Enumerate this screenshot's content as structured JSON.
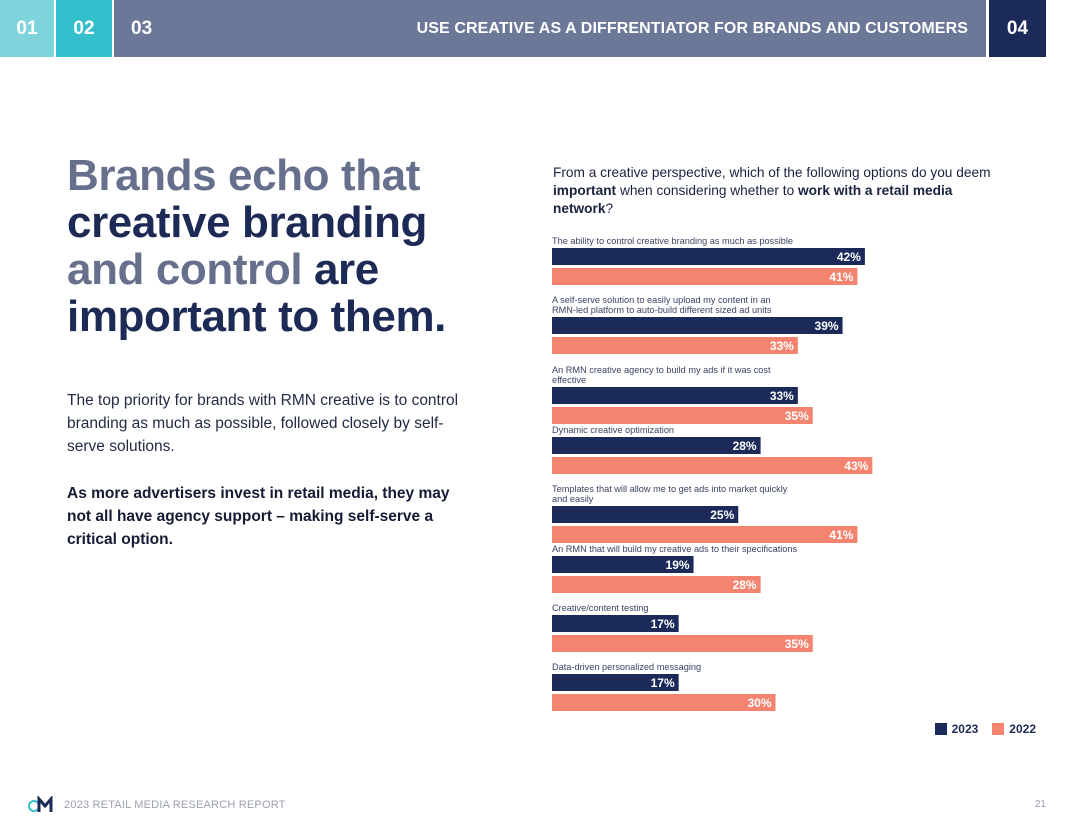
{
  "nav": {
    "tabs": [
      {
        "label": "01",
        "color": "#7fd4dc"
      },
      {
        "label": "02",
        "color": "#35bfcc"
      },
      {
        "label": "03",
        "color": "#6b7898"
      },
      {
        "label": "04",
        "color": "#1b2a59"
      }
    ],
    "section_title": "USE CREATIVE AS A DIFFRENTIATOR FOR BRANDS AND CUSTOMERS"
  },
  "headline": {
    "part1": "Brands echo that",
    "part2": "creative branding",
    "part3": "and control",
    "part4": "are",
    "part5": "important to them."
  },
  "body": {
    "paragraph": "The top priority for brands with RMN creative is to control branding as much as possible, followed closely by self-serve solutions.",
    "bold_paragraph": "As more advertisers invest in retail media, they may not all have agency support – making self-serve a critical option."
  },
  "question": {
    "part1": "From a creative perspective, which of the following options do you deem",
    "bold1": "important",
    "part2": "when considering whether to",
    "bold2": "work with a retail media network",
    "part3": "?"
  },
  "chart_data": {
    "type": "bar",
    "orientation": "horizontal",
    "categories": [
      "The ability to control creative branding as much as possible",
      "A self-serve solution to easily upload my content in an RMN-led platform to auto-build different sized ad units",
      "An RMN creative agency to build my ads if it was cost effective",
      "Dynamic creative optimization",
      "Templates that will allow me to get ads into market quickly and easily",
      "An RMN that will build my creative ads to their specifications",
      "Creative/content testing",
      "Data-driven personalized messaging"
    ],
    "series": [
      {
        "name": "2023",
        "color": "#1b2a59",
        "values": [
          42,
          39,
          33,
          28,
          25,
          19,
          17,
          17
        ]
      },
      {
        "name": "2022",
        "color": "#f4846f",
        "values": [
          41,
          33,
          35,
          43,
          41,
          28,
          35,
          30
        ]
      }
    ],
    "value_suffix": "%",
    "xlim": [
      0,
      45
    ],
    "legend_position": "bottom-right"
  },
  "footer": {
    "report_title": "2023 RETAIL MEDIA RESEARCH REPORT",
    "page_number": "21"
  }
}
